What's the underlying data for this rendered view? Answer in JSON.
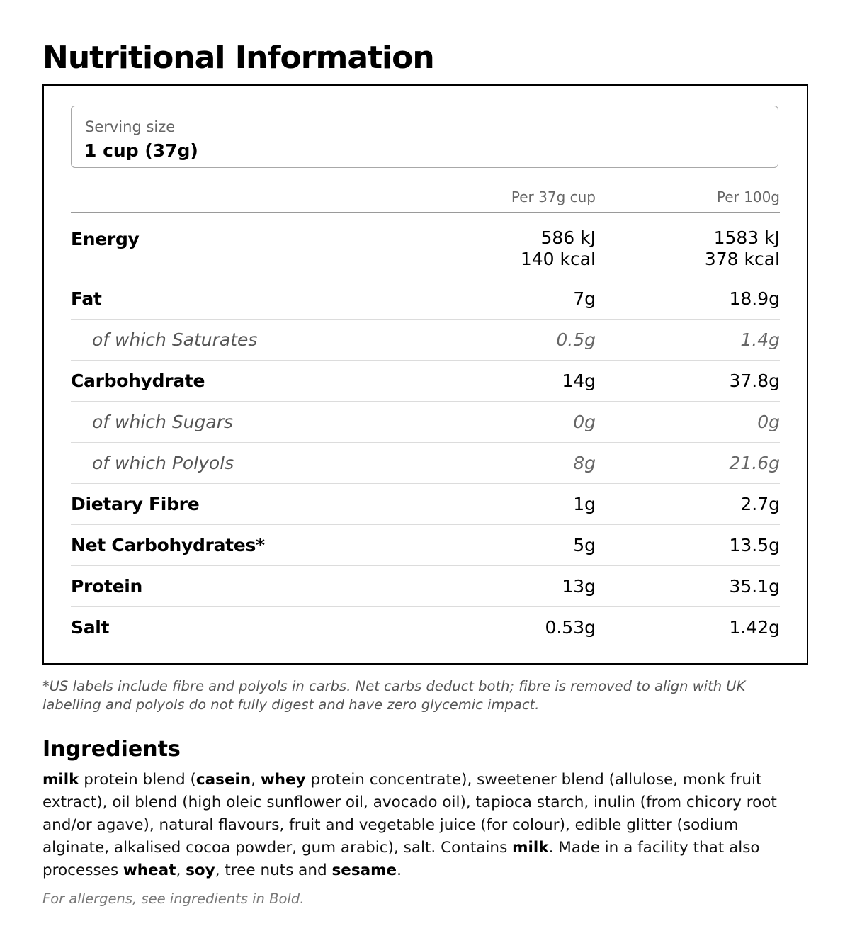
{
  "title": "Nutritional Information",
  "serving": {
    "label": "Serving size",
    "value": "1 cup (37g)"
  },
  "columns": {
    "per_serving": "Per 37g cup",
    "per_100g": "Per 100g"
  },
  "rows": {
    "energy": {
      "name": "Energy",
      "per_serving_kj": "586 kJ",
      "per_serving_kcal": "140 kcal",
      "per_100g_kj": "1583 kJ",
      "per_100g_kcal": "378 kcal"
    },
    "fat": {
      "name": "Fat",
      "per_serving": "7g",
      "per_100g": "18.9g"
    },
    "saturates": {
      "name": "of which Saturates",
      "per_serving": "0.5g",
      "per_100g": "1.4g"
    },
    "carbohydrate": {
      "name": "Carbohydrate",
      "per_serving": "14g",
      "per_100g": "37.8g"
    },
    "sugars": {
      "name": "of which Sugars",
      "per_serving": "0g",
      "per_100g": "0g"
    },
    "polyols": {
      "name": "of which Polyols",
      "per_serving": "8g",
      "per_100g": "21.6g"
    },
    "fibre": {
      "name": "Dietary Fibre",
      "per_serving": "1g",
      "per_100g": "2.7g"
    },
    "net_carbs": {
      "name": "Net Carbohydrates*",
      "per_serving": "5g",
      "per_100g": "13.5g"
    },
    "protein": {
      "name": "Protein",
      "per_serving": "13g",
      "per_100g": "35.1g"
    },
    "salt": {
      "name": "Salt",
      "per_serving": "0.53g",
      "per_100g": "1.42g"
    }
  },
  "footnote": "*US labels include fibre and polyols in carbs. Net carbs deduct both; fibre is removed to align with UK labelling and polyols do not fully digest and have zero glycemic impact.",
  "ingredients": {
    "title": "Ingredients",
    "segments": [
      {
        "text": "milk",
        "bold": true
      },
      {
        "text": " protein blend (",
        "bold": false
      },
      {
        "text": "casein",
        "bold": true
      },
      {
        "text": ", ",
        "bold": false
      },
      {
        "text": "whey",
        "bold": true
      },
      {
        "text": " protein concentrate), sweetener blend (allulose, monk fruit extract), oil blend (high oleic sunflower oil, avocado oil), tapioca starch, inulin (from chicory root and/or agave), natural flavours, fruit and vegetable juice (for colour), edible glitter (sodium alginate, alkalised cocoa powder, gum arabic), salt. Contains ",
        "bold": false
      },
      {
        "text": "milk",
        "bold": true
      },
      {
        "text": ". Made in a facility that also processes ",
        "bold": false
      },
      {
        "text": "wheat",
        "bold": true
      },
      {
        "text": ", ",
        "bold": false
      },
      {
        "text": "soy",
        "bold": true
      },
      {
        "text": ", tree nuts and ",
        "bold": false
      },
      {
        "text": "sesame",
        "bold": true
      },
      {
        "text": ".",
        "bold": false
      }
    ],
    "allergen_note": "For allergens, see ingredients in Bold."
  }
}
